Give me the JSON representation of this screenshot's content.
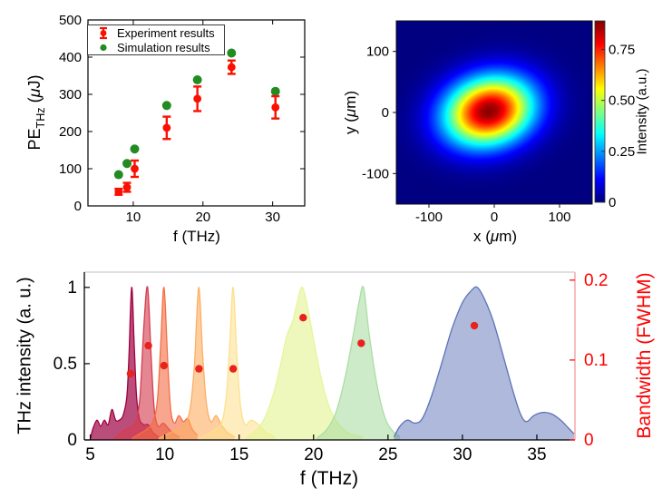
{
  "figure": {
    "background": "#ffffff"
  },
  "labels": {
    "scatter_ylabel_main": "PE",
    "scatter_ylabel_sub": "THz",
    "scatter_ylabel_pre_unit": " (",
    "mu": "μ",
    "scatter_ylabel_post_unit_J": "J)",
    "scatter_xlabel": "f (THz)",
    "heat_ylabel_pre": "y (",
    "heat_ylabel_post": "m)",
    "heat_xlabel_pre": "x (",
    "heat_xlabel_post": "m)",
    "colorbar_label": "Intensity (a.u.)",
    "spectra_ylabel_left": "THz intensity (a. u.)",
    "spectra_ylabel_right": "Bandwidth (FWHM)",
    "spectra_xlabel": "f (THz)"
  },
  "legend": {
    "entries": [
      {
        "label": "Experiment results",
        "marker": "errorbar-dot",
        "color": "#fa0f00"
      },
      {
        "label": "Simulation results",
        "marker": "dot",
        "color": "#228b22"
      }
    ]
  },
  "chart_data": [
    {
      "id": "pe-vs-frequency",
      "type": "scatter",
      "xlabel": "f (THz)",
      "ylabel": "PE_THz (μJ)",
      "xlim": [
        3.5,
        34.6
      ],
      "ylim": [
        0,
        500
      ],
      "xticks": [
        10,
        20,
        30
      ],
      "yticks": [
        0,
        100,
        200,
        300,
        400,
        500
      ],
      "legend_position": "northwest",
      "series": [
        {
          "name": "Simulation results",
          "marker": "dot",
          "color": "#228b22",
          "f_THz": [
            7.9,
            9.1,
            10.2,
            14.8,
            19.2,
            24.1,
            30.4
          ],
          "pe_uJ": [
            84,
            114,
            153,
            270,
            339,
            411,
            308
          ]
        },
        {
          "name": "Experiment results",
          "marker": "errorbar-dot",
          "color": "#fa0f00",
          "f_THz": [
            7.9,
            9.1,
            10.2,
            14.8,
            19.2,
            24.1,
            30.4
          ],
          "pe_uJ": [
            38,
            50,
            100,
            210,
            288,
            373,
            265
          ],
          "err_uJ": [
            8,
            12,
            22,
            30,
            33,
            18,
            30
          ]
        }
      ]
    },
    {
      "id": "beam-profile",
      "type": "heatmap",
      "xlabel": "x (μm)",
      "ylabel": "y (μm)",
      "xlim": [
        -150,
        150
      ],
      "ylim": [
        -150,
        150
      ],
      "xticks": [
        -100,
        0,
        100
      ],
      "yticks": [
        -100,
        0,
        100
      ],
      "colormap": "jet",
      "colorbar": {
        "label": "Intensity (a.u.)",
        "clim": [
          0,
          0.89
        ],
        "tick_values": [
          0,
          0.25,
          0.5,
          0.75
        ],
        "tick_labels": [
          "0",
          "0.25",
          "0.50",
          "0.75"
        ]
      },
      "gaussian": {
        "center_x_um": -8,
        "center_y_um": 2,
        "sigma_major_um": 48,
        "sigma_minor_um": 38,
        "rotation_deg": 20,
        "amplitude": 0.88
      }
    },
    {
      "id": "thz-spectra",
      "type": "area",
      "xlabel": "f (THz)",
      "ylabel_left": "THz intensity (a. u.)",
      "ylabel_right": "Bandwidth (FWHM)",
      "xlim": [
        4.6,
        37.56
      ],
      "ylim_left": [
        0,
        1.1
      ],
      "ylim_right": [
        0,
        0.21
      ],
      "xticks": [
        5,
        10,
        15,
        20,
        25,
        30,
        35
      ],
      "yticks_left": [
        0,
        0.5,
        1
      ],
      "yticks_left_labels": [
        "0",
        "0.5",
        "1"
      ],
      "yticks_right": [
        0,
        0.1,
        0.2
      ],
      "yticks_right_labels": [
        "0",
        "0.1",
        "0.2"
      ],
      "right_axis_color": "#ff0000",
      "spectra": [
        {
          "peak_THz": 7.8,
          "color": "#9e0142",
          "fill_opacity": 0.7,
          "points": [
            [
              5.0,
              0.01
            ],
            [
              5.2,
              0.08
            ],
            [
              5.45,
              0.13
            ],
            [
              5.7,
              0.09
            ],
            [
              5.95,
              0.13
            ],
            [
              6.2,
              0.1
            ],
            [
              6.45,
              0.2
            ],
            [
              6.7,
              0.13
            ],
            [
              6.95,
              0.13
            ],
            [
              7.2,
              0.16
            ],
            [
              7.45,
              0.28
            ],
            [
              7.6,
              0.55
            ],
            [
              7.78,
              1.0
            ],
            [
              7.95,
              0.62
            ],
            [
              8.1,
              0.3
            ],
            [
              8.3,
              0.14
            ],
            [
              8.6,
              0.1
            ],
            [
              8.9,
              0.1
            ],
            [
              9.2,
              0.05
            ],
            [
              9.6,
              0.02
            ]
          ]
        },
        {
          "peak_THz": 8.9,
          "color": "#d53e4f",
          "fill_opacity": 0.62,
          "points": [
            [
              6.6,
              0.01
            ],
            [
              7.0,
              0.04
            ],
            [
              7.4,
              0.07
            ],
            [
              7.8,
              0.09
            ],
            [
              8.1,
              0.13
            ],
            [
              8.35,
              0.3
            ],
            [
              8.6,
              0.75
            ],
            [
              8.85,
              1.0
            ],
            [
              9.1,
              0.52
            ],
            [
              9.3,
              0.2
            ],
            [
              9.55,
              0.09
            ],
            [
              9.9,
              0.11
            ],
            [
              10.2,
              0.08
            ],
            [
              10.6,
              0.04
            ],
            [
              11.0,
              0.02
            ]
          ]
        },
        {
          "peak_THz": 9.95,
          "color": "#f46d43",
          "fill_opacity": 0.6,
          "points": [
            [
              7.8,
              0.01
            ],
            [
              8.3,
              0.04
            ],
            [
              8.8,
              0.07
            ],
            [
              9.2,
              0.12
            ],
            [
              9.5,
              0.25
            ],
            [
              9.72,
              0.6
            ],
            [
              9.95,
              1.0
            ],
            [
              10.2,
              0.52
            ],
            [
              10.4,
              0.2
            ],
            [
              10.65,
              0.11
            ],
            [
              10.95,
              0.16
            ],
            [
              11.25,
              0.12
            ],
            [
              11.55,
              0.14
            ],
            [
              11.85,
              0.07
            ],
            [
              12.2,
              0.03
            ]
          ]
        },
        {
          "peak_THz": 12.3,
          "color": "#fdae61",
          "fill_opacity": 0.6,
          "points": [
            [
              9.6,
              0.01
            ],
            [
              10.2,
              0.04
            ],
            [
              10.8,
              0.07
            ],
            [
              11.3,
              0.1
            ],
            [
              11.7,
              0.2
            ],
            [
              12.0,
              0.5
            ],
            [
              12.28,
              1.0
            ],
            [
              12.55,
              0.55
            ],
            [
              12.8,
              0.24
            ],
            [
              13.1,
              0.12
            ],
            [
              13.45,
              0.16
            ],
            [
              13.8,
              0.1
            ],
            [
              14.2,
              0.05
            ],
            [
              14.7,
              0.02
            ]
          ]
        },
        {
          "peak_THz": 14.6,
          "color": "#fee08b",
          "fill_opacity": 0.55,
          "points": [
            [
              12.3,
              0.01
            ],
            [
              12.9,
              0.04
            ],
            [
              13.4,
              0.07
            ],
            [
              13.85,
              0.12
            ],
            [
              14.15,
              0.3
            ],
            [
              14.38,
              0.65
            ],
            [
              14.6,
              1.0
            ],
            [
              14.85,
              0.55
            ],
            [
              15.1,
              0.22
            ],
            [
              15.4,
              0.1
            ],
            [
              15.8,
              0.13
            ],
            [
              16.3,
              0.1
            ],
            [
              16.8,
              0.05
            ],
            [
              17.4,
              0.02
            ]
          ]
        },
        {
          "peak_THz": 19.25,
          "color": "#e6f598",
          "fill_opacity": 0.65,
          "points": [
            [
              15.4,
              0.01
            ],
            [
              16.1,
              0.06
            ],
            [
              16.7,
              0.14
            ],
            [
              17.3,
              0.3
            ],
            [
              17.8,
              0.5
            ],
            [
              18.2,
              0.68
            ],
            [
              18.6,
              0.78
            ],
            [
              18.9,
              0.9
            ],
            [
              19.25,
              1.0
            ],
            [
              19.7,
              0.82
            ],
            [
              20.2,
              0.55
            ],
            [
              20.7,
              0.33
            ],
            [
              21.2,
              0.18
            ],
            [
              21.8,
              0.09
            ],
            [
              22.5,
              0.04
            ],
            [
              23.3,
              0.02
            ]
          ]
        },
        {
          "peak_THz": 23.35,
          "color": "#abdda4",
          "fill_opacity": 0.6,
          "points": [
            [
              20.2,
              0.01
            ],
            [
              20.9,
              0.07
            ],
            [
              21.5,
              0.18
            ],
            [
              22.1,
              0.4
            ],
            [
              22.65,
              0.68
            ],
            [
              23.05,
              0.9
            ],
            [
              23.35,
              1.0
            ],
            [
              23.7,
              0.72
            ],
            [
              24.1,
              0.45
            ],
            [
              24.5,
              0.25
            ],
            [
              24.9,
              0.12
            ],
            [
              25.3,
              0.06
            ],
            [
              25.8,
              0.02
            ]
          ]
        },
        {
          "peak_THz": 31.0,
          "color": "#5e74b8",
          "fill_opacity": 0.5,
          "points": [
            [
              25.4,
              0.02
            ],
            [
              25.8,
              0.09
            ],
            [
              26.3,
              0.13
            ],
            [
              26.8,
              0.11
            ],
            [
              27.3,
              0.14
            ],
            [
              27.9,
              0.28
            ],
            [
              28.6,
              0.5
            ],
            [
              29.3,
              0.73
            ],
            [
              30.0,
              0.9
            ],
            [
              30.6,
              0.98
            ],
            [
              31.0,
              1.0
            ],
            [
              31.5,
              0.92
            ],
            [
              32.1,
              0.77
            ],
            [
              32.8,
              0.53
            ],
            [
              33.4,
              0.32
            ],
            [
              33.9,
              0.17
            ],
            [
              34.3,
              0.12
            ],
            [
              34.8,
              0.16
            ],
            [
              35.4,
              0.18
            ],
            [
              36.0,
              0.17
            ],
            [
              36.6,
              0.13
            ],
            [
              37.1,
              0.08
            ],
            [
              37.5,
              0.04
            ]
          ]
        }
      ],
      "bandwidth_points": {
        "color": "#e8231c",
        "f_THz": [
          7.7,
          8.9,
          9.95,
          12.3,
          14.6,
          19.3,
          23.2,
          30.8
        ],
        "fwhm": [
          0.083,
          0.118,
          0.093,
          0.089,
          0.089,
          0.153,
          0.121,
          0.143
        ]
      }
    }
  ]
}
